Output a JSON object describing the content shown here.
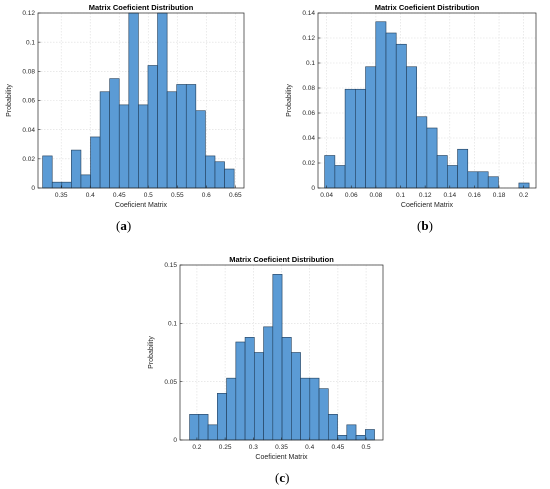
{
  "chart_data": [
    {
      "type": "bar",
      "title": "Matrix Coeficient Distribution",
      "xlabel": "Coeficient Matrix",
      "ylabel": "Probability",
      "caption_letter": "a",
      "xlim": [
        0.31,
        0.665
      ],
      "ylim": [
        0,
        0.12
      ],
      "bin_start": 0.318,
      "bin_width": 0.0165,
      "values": [
        0.022,
        0.004,
        0.004,
        0.026,
        0.009,
        0.035,
        0.066,
        0.075,
        0.057,
        0.12,
        0.057,
        0.084,
        0.12,
        0.066,
        0.071,
        0.071,
        0.053,
        0.022,
        0.018,
        0.013
      ],
      "xticks": [
        0.35,
        0.4,
        0.45,
        0.5,
        0.55,
        0.6,
        0.65
      ],
      "xtick_labels": [
        "0.35",
        "0.4",
        "0.45",
        "0.5",
        "0.55",
        "0.6",
        "0.65"
      ],
      "yticks": [
        0,
        0.02,
        0.04,
        0.06,
        0.08,
        0.1,
        0.12
      ],
      "ytick_labels": [
        "0",
        "0.02",
        "0.04",
        "0.06",
        "0.08",
        "0.1",
        "0.12"
      ],
      "grid": true,
      "bar_color": "#5b9bd5",
      "edge_color": "#1f3b57"
    },
    {
      "type": "bar",
      "title": "Matrix Coeficient Distribution",
      "xlabel": "Coeficient Matrix",
      "ylabel": "Probability",
      "caption_letter": "b",
      "xlim": [
        0.033,
        0.21
      ],
      "ylim": [
        0,
        0.14
      ],
      "bin_start": 0.0384,
      "bin_width": 0.0083,
      "values": [
        0.026,
        0.018,
        0.079,
        0.079,
        0.097,
        0.133,
        0.124,
        0.115,
        0.097,
        0.057,
        0.048,
        0.026,
        0.018,
        0.031,
        0.013,
        0.013,
        0.009,
        0,
        0,
        0.004
      ],
      "xticks": [
        0.04,
        0.06,
        0.08,
        0.1,
        0.12,
        0.14,
        0.16,
        0.18,
        0.2
      ],
      "xtick_labels": [
        "0.04",
        "0.06",
        "0.08",
        "0.1",
        "0.12",
        "0.14",
        "0.16",
        "0.18",
        "0.2"
      ],
      "yticks": [
        0,
        0.02,
        0.04,
        0.06,
        0.08,
        0.1,
        0.12,
        0.14
      ],
      "ytick_labels": [
        "0",
        "0.02",
        "0.04",
        "0.06",
        "0.08",
        "0.1",
        "0.12",
        "0.14"
      ],
      "grid": true,
      "bar_color": "#5b9bd5",
      "edge_color": "#1f3b57"
    },
    {
      "type": "bar",
      "title": "Matrix Coeficient Distribution",
      "xlabel": "Coeficient Matrix",
      "ylabel": "Probability",
      "caption_letter": "c",
      "xlim": [
        0.17,
        0.53
      ],
      "ylim": [
        0,
        0.15
      ],
      "bin_start": 0.187,
      "bin_width": 0.0164,
      "values": [
        0.022,
        0.022,
        0.013,
        0.04,
        0.053,
        0.084,
        0.088,
        0.075,
        0.097,
        0.142,
        0.088,
        0.075,
        0.053,
        0.053,
        0.044,
        0.022,
        0.004,
        0.013,
        0.004,
        0.009
      ],
      "xticks": [
        0.2,
        0.25,
        0.3,
        0.35,
        0.4,
        0.45,
        0.5
      ],
      "xtick_labels": [
        "0.2",
        "0.25",
        "0.3",
        "0.35",
        "0.4",
        "0.45",
        "0.5"
      ],
      "yticks": [
        0,
        0.05,
        0.1,
        0.15
      ],
      "ytick_labels": [
        "0",
        "0.05",
        "0.1",
        "0.15"
      ],
      "grid": true,
      "bar_color": "#5b9bd5",
      "edge_color": "#1f3b57"
    }
  ]
}
